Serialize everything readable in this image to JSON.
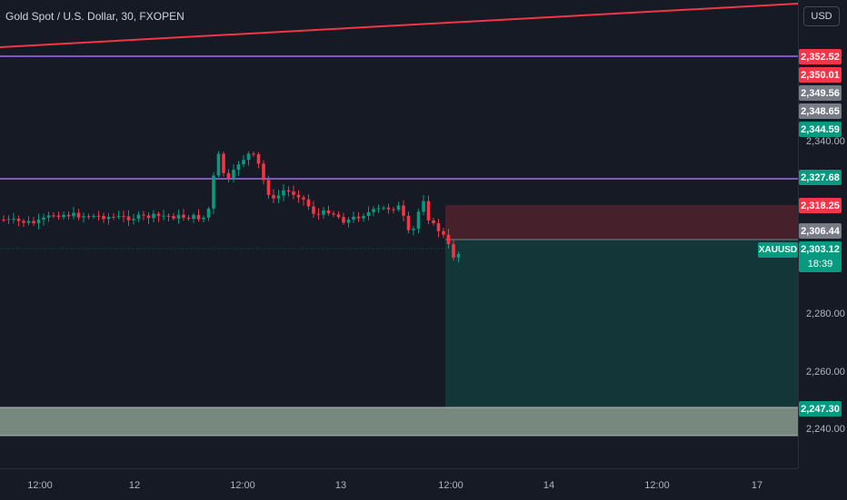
{
  "header": {
    "title": "Gold Spot / U.S. Dollar, 30, FXOPEN",
    "currency": "USD"
  },
  "colors": {
    "background": "#161a25",
    "up": "#089981",
    "down": "#f23645",
    "purple": "#7e57c2",
    "trend": "#f23645"
  },
  "price_axis": {
    "ticks": [
      "2,340.00",
      "2,280.00",
      "2,260.00",
      "2,240.00"
    ]
  },
  "price_tags": [
    {
      "label": "2,352.52",
      "color": "#f23645"
    },
    {
      "label": "2,350.01",
      "color": "#f23645"
    },
    {
      "label": "2,349.56",
      "color": "#787b86"
    },
    {
      "label": "2,348.65",
      "color": "#787b86"
    },
    {
      "label": "2,344.59",
      "color": "#089981"
    },
    {
      "label": "2,327.68",
      "color": "#089981"
    },
    {
      "label": "2,318.25",
      "color": "#f23645"
    },
    {
      "label": "2,306.44",
      "color": "#787b86"
    },
    {
      "label": "2,247.30",
      "color": "#089981"
    }
  ],
  "current": {
    "symbol": "XAUUSD",
    "price": "2,303.12",
    "countdown": "18:39"
  },
  "time_axis": {
    "labels": [
      "12:00",
      "12",
      "12:00",
      "13",
      "12:00",
      "14",
      "12:00",
      "17"
    ]
  },
  "position": {
    "entry": 2306.44,
    "stop": 2318.25,
    "target": 2247.3
  }
}
